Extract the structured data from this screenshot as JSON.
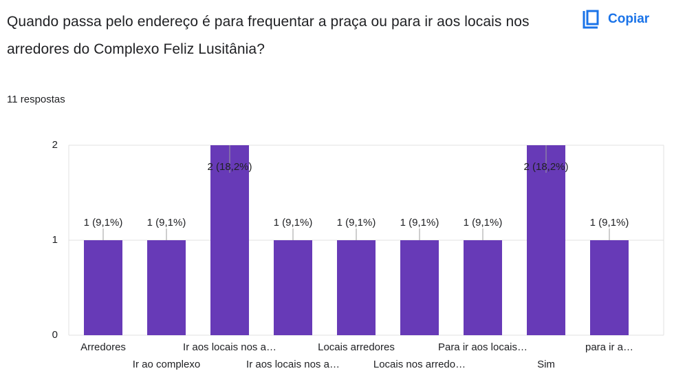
{
  "title": "Quando passa pelo endereço é para frequentar a praça ou para ir aos locais nos arredores do Complexo Feliz Lusitânia?",
  "copy_button": "Copiar",
  "responses": "11 respostas",
  "chart_data": {
    "type": "bar",
    "categories": [
      "Arredores",
      "Ir ao complexo",
      "Ir aos locais nos a…",
      "Ir aos locais nos a…",
      "Locais arredores",
      "Locais nos arredo…",
      "Para ir aos locais…",
      "Sim",
      "para ir a…"
    ],
    "values": [
      1,
      1,
      2,
      1,
      1,
      1,
      1,
      2,
      1
    ],
    "value_labels": [
      "1 (9,1%)",
      "1 (9,1%)",
      "2 (18,2%)",
      "1 (9,1%)",
      "1 (9,1%)",
      "1 (9,1%)",
      "1 (9,1%)",
      "2 (18,2%)",
      "1 (9,1%)"
    ],
    "color": "#673ab7",
    "ylim": [
      0,
      2
    ],
    "yticks": [
      0,
      1,
      2
    ],
    "grid": true
  }
}
